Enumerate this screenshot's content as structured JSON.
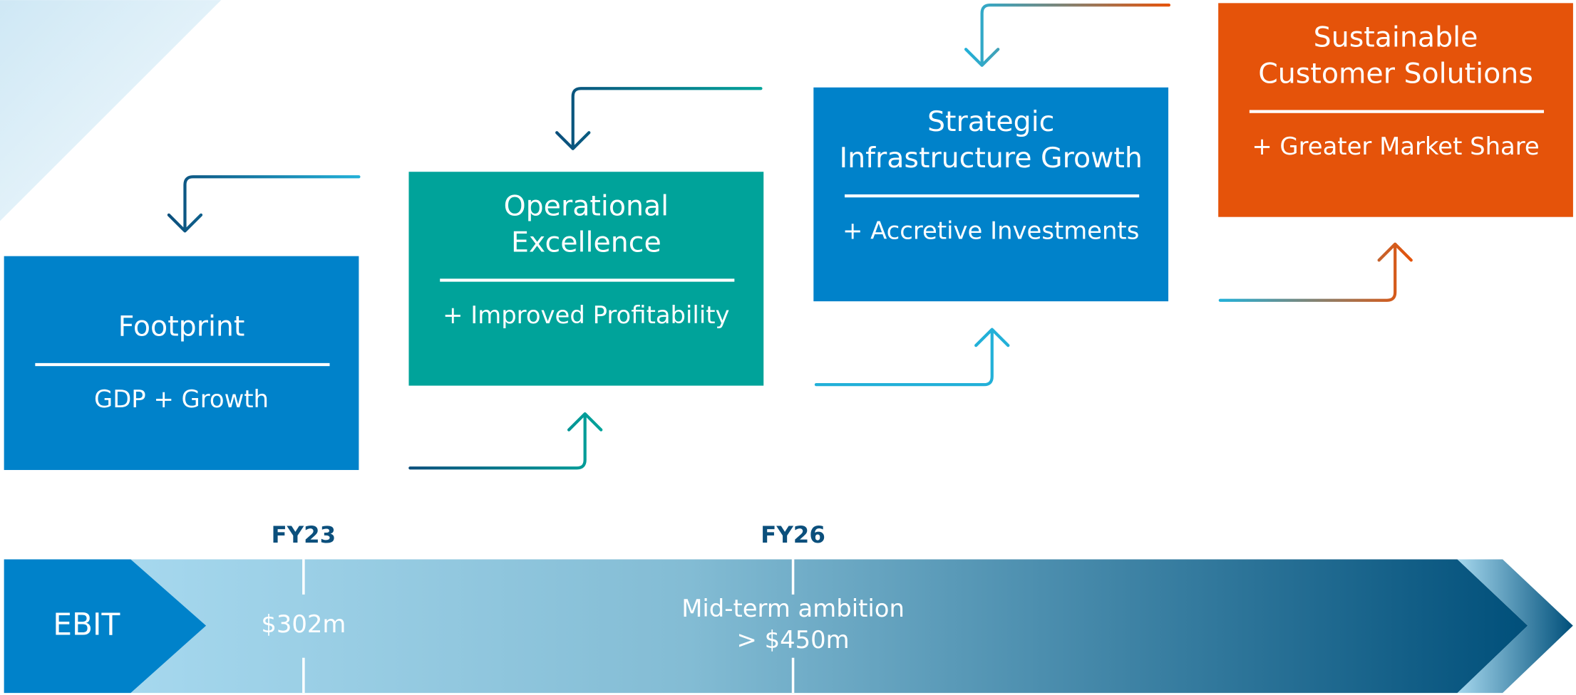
{
  "boxes": [
    {
      "title": [
        "Footprint"
      ],
      "subtitle": "GDP + Growth"
    },
    {
      "title": [
        "Operational",
        "Excellence"
      ],
      "subtitle": "+ Improved Profitability"
    },
    {
      "title": [
        "Strategic",
        "Infrastructure Growth"
      ],
      "subtitle": "+ Accretive Investments"
    },
    {
      "title": [
        "Sustainable",
        "Customer Solutions"
      ],
      "subtitle": "+ Greater Market Share"
    }
  ],
  "timeline": {
    "label": "EBIT",
    "markers": [
      {
        "period": "FY23",
        "value": [
          "$302m"
        ]
      },
      {
        "period": "FY26",
        "value": [
          "Mid-term ambition",
          "> $450m"
        ]
      }
    ]
  }
}
